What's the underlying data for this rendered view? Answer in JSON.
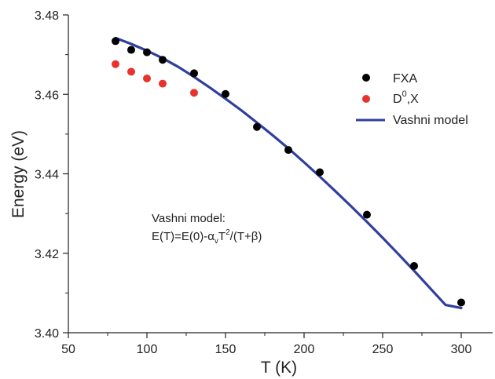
{
  "chart_data": {
    "type": "scatter",
    "xlabel": "T (K)",
    "ylabel": "Energy (eV)",
    "xlim": [
      50,
      320
    ],
    "ylim": [
      3.4,
      3.48
    ],
    "x_ticks": [
      50,
      100,
      150,
      200,
      250,
      300
    ],
    "x_tick_labels": [
      "50",
      "100",
      "150",
      "200",
      "250",
      "300"
    ],
    "y_ticks": [
      3.4,
      3.42,
      3.44,
      3.46,
      3.48
    ],
    "y_tick_labels": [
      "3.40",
      "3.42",
      "3.44",
      "3.46",
      "3.48"
    ],
    "legend_position": "top-right",
    "series": [
      {
        "name": "FXA",
        "kind": "scatter",
        "color": "#000000",
        "points": [
          [
            80,
            3.4734
          ],
          [
            90,
            3.4712
          ],
          [
            100,
            3.4706
          ],
          [
            110,
            3.4687
          ],
          [
            130,
            3.4653
          ],
          [
            150,
            3.4601
          ],
          [
            170,
            3.4518
          ],
          [
            190,
            3.446
          ],
          [
            210,
            3.4404
          ],
          [
            240,
            3.4297
          ],
          [
            270,
            3.4168
          ],
          [
            300,
            3.4076
          ]
        ]
      },
      {
        "name_main": "D",
        "name_sup": "0",
        "name_rest": ",X",
        "kind": "scatter",
        "color": "#e8322d",
        "points": [
          [
            80,
            3.4676
          ],
          [
            90,
            3.4657
          ],
          [
            100,
            3.464
          ],
          [
            110,
            3.4627
          ],
          [
            130,
            3.4604
          ]
        ]
      },
      {
        "name": "Vashni model",
        "kind": "line",
        "color": "#2e3f9e",
        "points": [
          [
            80,
            3.4742
          ],
          [
            90,
            3.4727
          ],
          [
            100,
            3.471
          ],
          [
            110,
            3.4691
          ],
          [
            120,
            3.4669
          ],
          [
            130,
            3.4644
          ],
          [
            140,
            3.4617
          ],
          [
            150,
            3.4589
          ],
          [
            160,
            3.456
          ],
          [
            170,
            3.4529
          ],
          [
            180,
            3.4497
          ],
          [
            190,
            3.4464
          ],
          [
            200,
            3.4429
          ],
          [
            210,
            3.4393
          ],
          [
            220,
            3.4356
          ],
          [
            230,
            3.4318
          ],
          [
            240,
            3.4279
          ],
          [
            250,
            3.4239
          ],
          [
            260,
            3.4198
          ],
          [
            270,
            3.4156
          ],
          [
            280,
            3.4113
          ],
          [
            290,
            3.407
          ],
          [
            300,
            3.4062
          ]
        ]
      }
    ],
    "annotation": {
      "line1": "Vashni model:",
      "eq_a": "E(T)=E(0)-",
      "eq_alpha": "α",
      "eq_sub": "v",
      "eq_T": "T",
      "eq_sup": "2",
      "eq_b": "/(T+",
      "eq_beta": "β",
      "eq_c": ")"
    }
  }
}
